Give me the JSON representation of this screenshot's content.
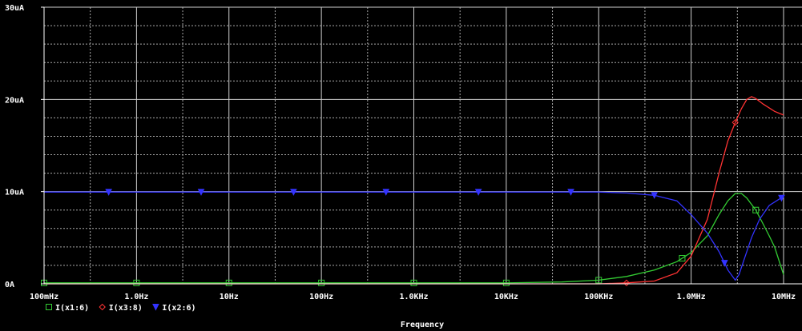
{
  "chart_data": {
    "type": "line",
    "xlabel": "Frequency",
    "ylabel": "",
    "xscale": "log",
    "xlim": [
      0.1,
      10000000
    ],
    "ylim": [
      0,
      30
    ],
    "x_ticks": [
      {
        "value": 0.1,
        "label": "100mHz"
      },
      {
        "value": 1,
        "label": "1.0Hz"
      },
      {
        "value": 10,
        "label": "10Hz"
      },
      {
        "value": 100,
        "label": "100Hz"
      },
      {
        "value": 1000,
        "label": "1.0KHz"
      },
      {
        "value": 10000,
        "label": "10KHz"
      },
      {
        "value": 100000,
        "label": "100KHz"
      },
      {
        "value": 1000000,
        "label": "1.0MHz"
      },
      {
        "value": 10000000,
        "label": "10MHz"
      }
    ],
    "y_ticks": [
      {
        "value": 0,
        "label": "0A"
      },
      {
        "value": 10,
        "label": "10uA"
      },
      {
        "value": 20,
        "label": "20uA"
      },
      {
        "value": 30,
        "label": "30uA"
      }
    ],
    "grid": true,
    "legend_position": "bottom-left",
    "series": [
      {
        "name": "I(x1:6)",
        "color": "#33cc33",
        "marker": "square",
        "points": [
          [
            0.1,
            0.1
          ],
          [
            1,
            0.1
          ],
          [
            10,
            0.1
          ],
          [
            100,
            0.1
          ],
          [
            1000,
            0.1
          ],
          [
            10000,
            0.1
          ],
          [
            40000,
            0.2
          ],
          [
            100000,
            0.4
          ],
          [
            200000,
            0.8
          ],
          [
            400000,
            1.5
          ],
          [
            700000,
            2.4
          ],
          [
            1000000,
            3.4
          ],
          [
            1500000,
            5.2
          ],
          [
            2000000,
            7.5
          ],
          [
            2500000,
            9.0
          ],
          [
            3000000,
            9.8
          ],
          [
            3500000,
            9.8
          ],
          [
            4000000,
            9.3
          ],
          [
            5000000,
            8.0
          ],
          [
            6000000,
            6.5
          ],
          [
            7000000,
            5.2
          ],
          [
            8000000,
            4.0
          ],
          [
            10000000,
            1.0
          ]
        ],
        "markers_at": [
          0.1,
          1,
          10,
          100,
          1000,
          10000,
          100000,
          800000,
          5000000
        ]
      },
      {
        "name": "I(x3:8)",
        "color": "#ff3333",
        "marker": "diamond",
        "points": [
          [
            0.1,
            0.0
          ],
          [
            10000,
            0.0
          ],
          [
            100000,
            0.0
          ],
          [
            200000,
            0.1
          ],
          [
            400000,
            0.3
          ],
          [
            700000,
            1.2
          ],
          [
            1000000,
            3.0
          ],
          [
            1500000,
            7.0
          ],
          [
            2000000,
            12.0
          ],
          [
            2500000,
            15.5
          ],
          [
            3000000,
            17.5
          ],
          [
            3500000,
            19.0
          ],
          [
            4000000,
            20.0
          ],
          [
            4500000,
            20.3
          ],
          [
            5000000,
            20.1
          ],
          [
            6000000,
            19.5
          ],
          [
            8000000,
            18.7
          ],
          [
            10000000,
            18.3
          ]
        ],
        "markers_at": [
          200000,
          3000000
        ]
      },
      {
        "name": "I(x2:6)",
        "color": "#3333ff",
        "marker": "triangle-down",
        "points": [
          [
            0.1,
            9.95
          ],
          [
            100000,
            9.95
          ],
          [
            200000,
            9.85
          ],
          [
            400000,
            9.6
          ],
          [
            700000,
            9.0
          ],
          [
            1000000,
            7.5
          ],
          [
            1500000,
            5.5
          ],
          [
            2000000,
            3.5
          ],
          [
            2500000,
            1.5
          ],
          [
            3000000,
            0.4
          ],
          [
            3300000,
            1.0
          ],
          [
            3700000,
            2.5
          ],
          [
            4500000,
            5.0
          ],
          [
            5500000,
            7.0
          ],
          [
            7000000,
            8.5
          ],
          [
            9000000,
            9.2
          ],
          [
            10000000,
            9.4
          ]
        ],
        "markers_at": [
          0.5,
          5,
          50,
          500,
          5000,
          50000,
          400000,
          2300000,
          9500000
        ]
      }
    ]
  }
}
